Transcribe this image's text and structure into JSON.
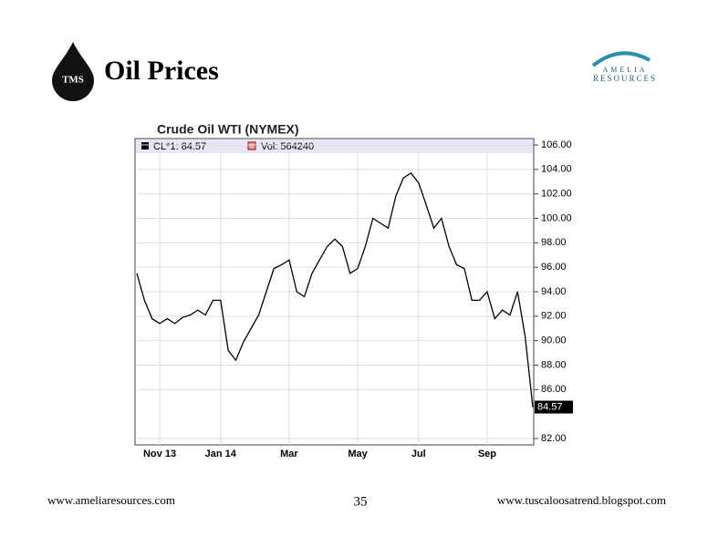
{
  "slide": {
    "title": "Oil Prices",
    "logo": "TMS",
    "brand_top": "AMELIA",
    "brand_bottom": "RESOURCES",
    "footer_left": "www.ameliaresources.com",
    "page_number": "35",
    "footer_right": "www.tuscaloosatrend.blogspot.com"
  },
  "chart_data": {
    "type": "line",
    "title": "Crude Oil WTI (NYMEX)",
    "categories": [
      null,
      null,
      null,
      "Nov 13",
      null,
      null,
      null,
      null,
      null,
      null,
      null,
      "Jan 14",
      null,
      null,
      null,
      null,
      null,
      null,
      null,
      null,
      "Mar",
      null,
      null,
      null,
      null,
      null,
      null,
      null,
      null,
      "May",
      null,
      null,
      null,
      null,
      null,
      null,
      null,
      "Jul",
      null,
      null,
      null,
      null,
      null,
      null,
      null,
      null,
      "Sep",
      null,
      null,
      null,
      null,
      null,
      null
    ],
    "series": [
      {
        "name": "CL*1: 84.57",
        "color": "#000000",
        "values": [
          95.5,
          93.3,
          91.8,
          91.4,
          91.8,
          91.4,
          91.9,
          92.1,
          92.5,
          92.1,
          93.3,
          93.3,
          89.2,
          88.4,
          89.9,
          91.0,
          92.1,
          94.0,
          95.9,
          96.2,
          96.6,
          94.0,
          93.6,
          95.5,
          96.6,
          97.7,
          98.3,
          97.7,
          95.5,
          95.9,
          97.7,
          100.0,
          99.6,
          99.2,
          101.8,
          103.3,
          103.7,
          102.9,
          101.1,
          99.2,
          100.0,
          97.7,
          96.2,
          95.9,
          93.3,
          93.3,
          94.0,
          91.8,
          92.5,
          92.1,
          94.0,
          90.3,
          84.57
        ]
      }
    ],
    "volume_legend": {
      "name": "Vol: 564240",
      "color": "#f4a0a0"
    },
    "last_label": "84.57",
    "ylim": [
      82,
      106
    ],
    "yticks": [
      {
        "value": 82,
        "label": "82.00"
      },
      {
        "value": 86,
        "label": "86.00"
      },
      {
        "value": 88,
        "label": "88.00"
      },
      {
        "value": 90,
        "label": "90.00"
      },
      {
        "value": 92,
        "label": "92.00"
      },
      {
        "value": 94,
        "label": "94.00"
      },
      {
        "value": 96,
        "label": "96.00"
      },
      {
        "value": 98,
        "label": "98.00"
      },
      {
        "value": 100,
        "label": "100.00"
      },
      {
        "value": 102,
        "label": "102.00"
      },
      {
        "value": 104,
        "label": "104.00"
      },
      {
        "value": 106,
        "label": "106.00"
      }
    ],
    "grid": true
  }
}
